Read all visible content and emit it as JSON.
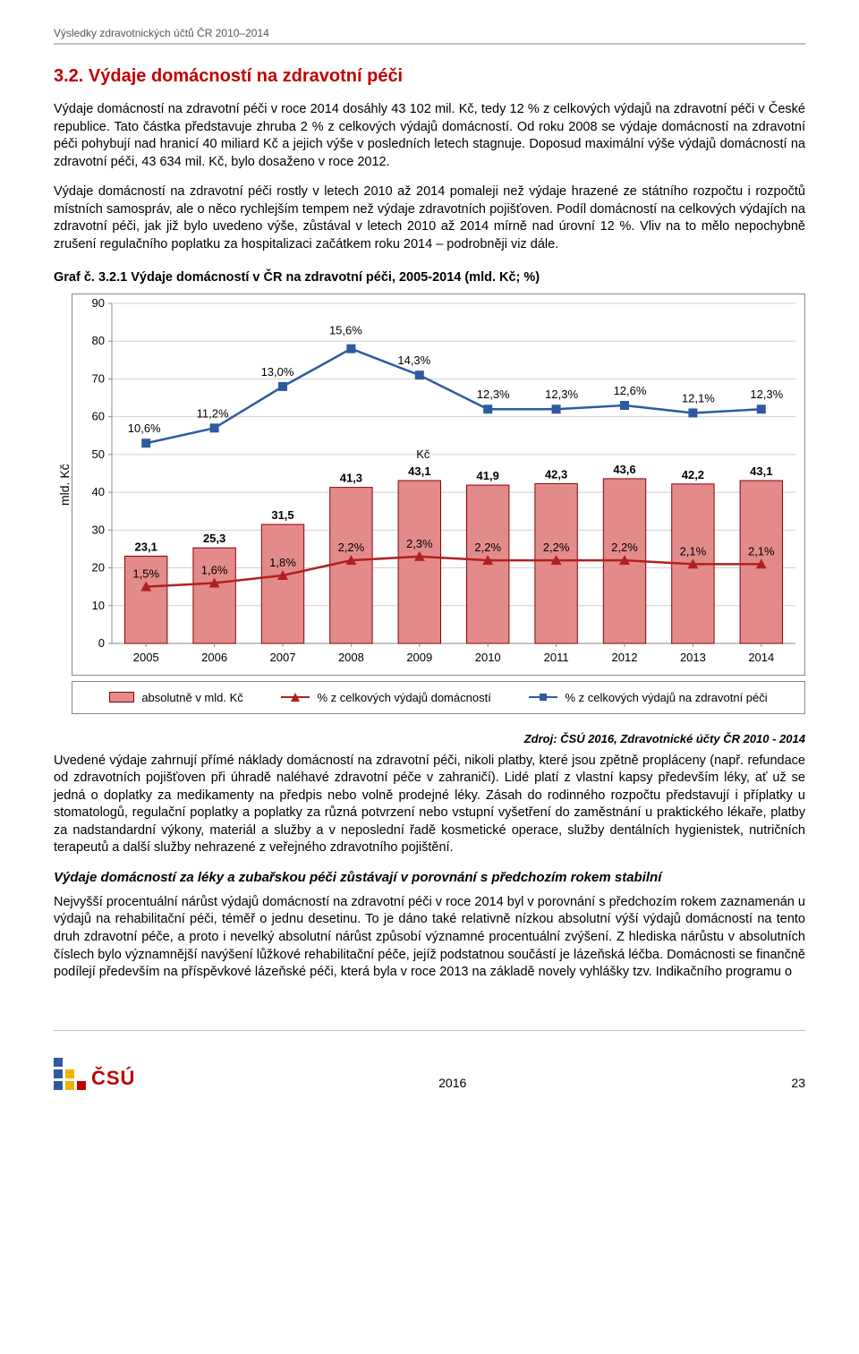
{
  "header": {
    "running": "Výsledky zdravotnických účtů ČR 2010–2014"
  },
  "section": {
    "title": "3.2. Výdaje domácností na zdravotní péči",
    "p1": "Výdaje domácností na zdravotní péči v roce 2014 dosáhly 43 102 mil. Kč, tedy 12 % z celkových výdajů na zdravotní péči v České republice. Tato částka představuje zhruba 2 % z celkových výdajů domácností. Od roku 2008 se výdaje domácností na zdravotní péči pohybují nad hranicí 40 miliard Kč a jejich výše v posledních letech stagnuje. Doposud maximální výše výdajů domácností na zdravotní péči, 43 634 mil. Kč, bylo dosaženo v roce 2012.",
    "p2": "Výdaje domácností na zdravotní péči rostly v letech 2010 až 2014 pomaleji než výdaje hrazené ze státního rozpočtu i rozpočtů místních samospráv, ale o něco rychlejším tempem než výdaje zdravotních pojišťoven. Podíl domácností na celkových výdajích na zdravotní péči, jak již bylo uvedeno výše, zůstával v letech 2010 až 2014 mírně nad úrovní 12 %. Vliv na to mělo nepochybně zrušení regulačního poplatku za hospitalizaci začátkem roku 2014 – podrobněji viz dále."
  },
  "chart": {
    "caption": "Graf č. 3.2.1 Výdaje domácností v ČR na zdravotní péči, 2005-2014 (mld. Kč; %)",
    "ylabel": "mld. Kč",
    "mid_label": "Kč",
    "ylim": [
      0,
      90
    ],
    "ytick_step": 10,
    "yticks": [
      "0",
      "10",
      "20",
      "30",
      "40",
      "50",
      "60",
      "70",
      "80",
      "90"
    ],
    "categories": [
      "2005",
      "2006",
      "2007",
      "2008",
      "2009",
      "2010",
      "2011",
      "2012",
      "2013",
      "2014"
    ],
    "bars": [
      23.1,
      25.3,
      31.5,
      41.3,
      43.1,
      41.9,
      42.3,
      43.6,
      42.2,
      43.1
    ],
    "bar_labels": [
      "23,1",
      "25,3",
      "31,5",
      "41,3",
      "43,1",
      "41,9",
      "42,3",
      "43,6",
      "42,2",
      "43,1"
    ],
    "line1_pct": [
      1.5,
      1.6,
      1.8,
      2.2,
      2.3,
      2.2,
      2.2,
      2.2,
      2.1,
      2.1
    ],
    "line1_pct_y": [
      15,
      16,
      18,
      22,
      23,
      22,
      22,
      22,
      21,
      21
    ],
    "line1_labels": [
      "1,5%",
      "1,6%",
      "1,8%",
      "2,2%",
      "2,3%",
      "2,2%",
      "2,2%",
      "2,2%",
      "2,1%",
      "2,1%"
    ],
    "line2_pct": [
      10.6,
      11.2,
      13.0,
      15.6,
      14.3,
      12.3,
      12.3,
      12.6,
      12.1,
      12.3
    ],
    "line2_pct_y": [
      53,
      57,
      68,
      78,
      71,
      62,
      62,
      63,
      61,
      62
    ],
    "line2_labels": [
      "10,6%",
      "11,2%",
      "13,0%",
      "15,6%",
      "14,3%",
      "12,3%",
      "12,3%",
      "12,6%",
      "12,1%",
      "12,3%"
    ],
    "colors": {
      "bar_fill": "#e38b8b",
      "bar_stroke": "#8a0000",
      "line1": "#b02020",
      "line2": "#2e5aa0",
      "grid": "#d0d0d0",
      "axis": "#888888"
    },
    "legend": {
      "l1": "absolutně v mld. Kč",
      "l2": "% z celkových výdajů domácností",
      "l3": "% z celkových výdajů na zdravotní péči"
    },
    "source": "Zdroj: ČSÚ 2016, Zdravotnické účty ČR 2010 - 2014"
  },
  "body2": {
    "p3": "Uvedené výdaje zahrnují přímé náklady domácností na zdravotní péči, nikoli platby, které jsou zpětně propláceny (např. refundace od zdravotních pojišťoven při úhradě naléhavé zdravotní péče v zahraničí). Lidé platí z vlastní kapsy především léky, ať už se jedná o doplatky za medikamenty na předpis nebo volně prodejné léky. Zásah do rodinného rozpočtu představují i příplatky u stomatologů, regulační poplatky a poplatky za různá potvrzení nebo vstupní vyšetření do zaměstnání u praktického lékaře, platby za nadstandardní výkony, materiál a služby a v neposlední řadě kosmetické operace, služby dentálních hygienistek, nutričních terapeutů a další služby nehrazené z veřejného zdravotního pojištění.",
    "sub": "Výdaje domácností za léky a zubařskou péči zůstávají v porovnání s předchozím rokem stabilní",
    "p4": "Nejvyšší procentuální nárůst výdajů domácností na zdravotní péči v roce 2014 byl v porovnání s předchozím rokem zaznamenán u výdajů na rehabilitační péči, téměř o jednu desetinu. To je dáno také relativně nízkou absolutní výší výdajů domácností na tento druh zdravotní péče, a proto i nevelký absolutní nárůst způsobí významné procentuální zvýšení. Z hlediska nárůstu v absolutních číslech bylo významnější navýšení lůžkové rehabilitační péče, jejíž podstatnou součástí je lázeňská léčba. Domácnosti se finančně podílejí především na příspěvkové lázeňské péči, která byla v roce 2013 na základě novely vyhlášky tzv. Indikačního programu o"
  },
  "footer": {
    "logo_text": "ČSÚ",
    "logo_colors": {
      "blue": "#2e5aa0",
      "yellow": "#f0b400",
      "red": "#c00000"
    },
    "year": "2016",
    "page": "23"
  }
}
